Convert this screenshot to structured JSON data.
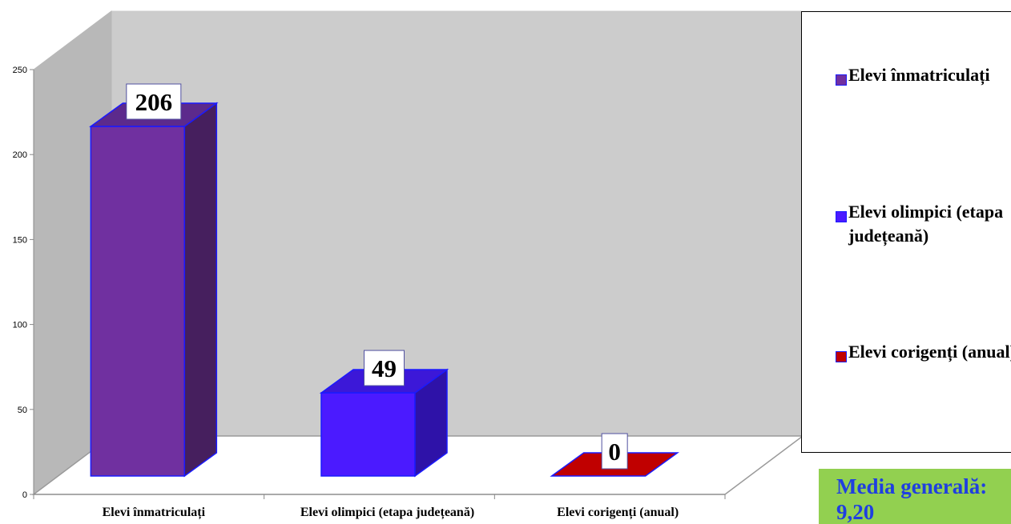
{
  "chart_data": {
    "type": "bar",
    "categories": [
      "Elevi înmatriculați",
      "Elevi olimpici (etapa județeană)",
      "Elevi corigenți (anual)"
    ],
    "values": [
      206,
      49,
      0
    ],
    "data_labels": [
      "206",
      "49",
      "0"
    ],
    "y_ticks": [
      "0",
      "50",
      "100",
      "150",
      "200",
      "250"
    ],
    "ylim": [
      0,
      250
    ],
    "three_d": true,
    "grid": false,
    "legend_position": "right",
    "legend": [
      "Elevi înmatriculați",
      "Elevi olimpici (etapa județeană)",
      "Elevi corigenți (anual)"
    ],
    "colors": {
      "front": [
        "#7030a0",
        "#4b1aff",
        "#c00000"
      ],
      "top": [
        "#5c2a8c",
        "#3c18d8",
        "#c00000"
      ],
      "side": [
        "#461f5e",
        "#2e12a8",
        "#9a0000"
      ],
      "edge": "#1a1aff",
      "wall": "#cccccc",
      "floor": "#ffffff"
    }
  },
  "footer_box": {
    "text": "Media generală: 9,20",
    "background": "#92d050",
    "color": "#1f3fe0"
  }
}
